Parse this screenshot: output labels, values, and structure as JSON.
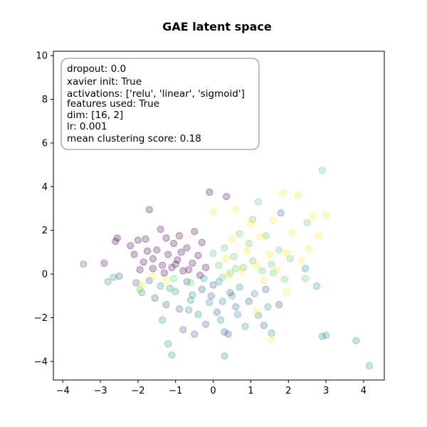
{
  "chart_data": {
    "type": "scatter",
    "title": "GAE latent space",
    "xlabel": "",
    "ylabel": "",
    "xlim": [
      -4.25,
      4.55
    ],
    "ylim": [
      -4.85,
      10.2
    ],
    "xticks": [
      -4,
      -3,
      -2,
      -1,
      0,
      1,
      2,
      3,
      4
    ],
    "yticks": [
      -4,
      -2,
      0,
      2,
      4,
      6,
      8,
      10
    ],
    "grid": false,
    "legend": "none",
    "colormap": "viridis",
    "marker_alpha": 0.25,
    "annotation": {
      "placement": "top-left",
      "lines": [
        "dropout: 0.0",
        "xavier init: True",
        "activations: ['relu', 'linear', 'sigmoid']",
        "features used: True",
        "dim: [16, 2]",
        "lr: 0.001",
        "mean clustering score: 0.18"
      ]
    },
    "cluster_colors": [
      "#440154",
      "#3b528b",
      "#21918c",
      "#5ec962",
      "#fde725"
    ],
    "points": [
      {
        "x": -3.95,
        "y": 9.3,
        "c": 0
      },
      {
        "x": -3.45,
        "y": 0.45,
        "c": 1
      },
      {
        "x": -2.9,
        "y": 0.5,
        "c": 0
      },
      {
        "x": -2.8,
        "y": -0.35,
        "c": 2
      },
      {
        "x": -2.55,
        "y": 1.65,
        "c": 0
      },
      {
        "x": -2.6,
        "y": 1.5,
        "c": 0
      },
      {
        "x": -2.5,
        "y": -0.1,
        "c": 1
      },
      {
        "x": -2.65,
        "y": -0.15,
        "c": 2
      },
      {
        "x": -2.2,
        "y": 1.3,
        "c": 0
      },
      {
        "x": -2.1,
        "y": 0.9,
        "c": 0
      },
      {
        "x": -2.0,
        "y": 1.55,
        "c": 0
      },
      {
        "x": -1.95,
        "y": 0.2,
        "c": 0
      },
      {
        "x": -1.8,
        "y": 1.6,
        "c": 0
      },
      {
        "x": -1.7,
        "y": 2.95,
        "c": 0
      },
      {
        "x": -1.6,
        "y": 0.7,
        "c": 0
      },
      {
        "x": -1.5,
        "y": 1.1,
        "c": 0
      },
      {
        "x": -1.4,
        "y": 2.05,
        "c": 0
      },
      {
        "x": -1.35,
        "y": 0.4,
        "c": 0
      },
      {
        "x": -1.25,
        "y": 1.65,
        "c": 0
      },
      {
        "x": -1.2,
        "y": 0.9,
        "c": 0
      },
      {
        "x": -1.1,
        "y": 0.3,
        "c": 0
      },
      {
        "x": -1.05,
        "y": 1.4,
        "c": 0
      },
      {
        "x": -0.95,
        "y": 0.65,
        "c": 0
      },
      {
        "x": -0.9,
        "y": 1.75,
        "c": 0
      },
      {
        "x": -0.8,
        "y": 0.15,
        "c": 0
      },
      {
        "x": -0.7,
        "y": 1.2,
        "c": 0
      },
      {
        "x": -0.55,
        "y": 0.5,
        "c": 0
      },
      {
        "x": -0.5,
        "y": 1.95,
        "c": 0
      },
      {
        "x": -0.4,
        "y": 0.85,
        "c": 0
      },
      {
        "x": -0.3,
        "y": 1.45,
        "c": 0
      },
      {
        "x": -0.2,
        "y": 0.3,
        "c": 0
      },
      {
        "x": -0.1,
        "y": 3.75,
        "c": 0
      },
      {
        "x": 0.35,
        "y": 3.55,
        "c": 0
      },
      {
        "x": -1.85,
        "y": 0.55,
        "c": 0
      },
      {
        "x": -1.6,
        "y": 0.25,
        "c": 0
      },
      {
        "x": -1.3,
        "y": 0.05,
        "c": 0
      },
      {
        "x": -1.0,
        "y": 0.45,
        "c": 0
      },
      {
        "x": -0.65,
        "y": 0.2,
        "c": 0
      },
      {
        "x": -0.35,
        "y": -0.05,
        "c": 0
      },
      {
        "x": -1.75,
        "y": 1.05,
        "c": 0
      },
      {
        "x": -0.85,
        "y": 1.0,
        "c": 0
      },
      {
        "x": -2.05,
        "y": -0.4,
        "c": 1
      },
      {
        "x": -1.9,
        "y": -0.85,
        "c": 2
      },
      {
        "x": -1.7,
        "y": -0.3,
        "c": 1
      },
      {
        "x": -1.55,
        "y": -1.1,
        "c": 1
      },
      {
        "x": -1.4,
        "y": -0.55,
        "c": 2
      },
      {
        "x": -1.35,
        "y": -2.1,
        "c": 2
      },
      {
        "x": -1.25,
        "y": -1.4,
        "c": 1
      },
      {
        "x": -1.2,
        "y": -3.2,
        "c": 2
      },
      {
        "x": -1.1,
        "y": -3.7,
        "c": 2
      },
      {
        "x": -1.0,
        "y": -0.8,
        "c": 2
      },
      {
        "x": -0.9,
        "y": -1.6,
        "c": 1
      },
      {
        "x": -0.8,
        "y": -2.55,
        "c": 1
      },
      {
        "x": -0.7,
        "y": -0.35,
        "c": 1
      },
      {
        "x": -0.6,
        "y": -1.2,
        "c": 2
      },
      {
        "x": -0.5,
        "y": -2.75,
        "c": 1
      },
      {
        "x": -0.4,
        "y": -1.85,
        "c": 2
      },
      {
        "x": -0.3,
        "y": -0.7,
        "c": 1
      },
      {
        "x": -0.2,
        "y": -2.3,
        "c": 1
      },
      {
        "x": -0.1,
        "y": -1.3,
        "c": 2
      },
      {
        "x": 0.0,
        "y": -0.5,
        "c": 1
      },
      {
        "x": 0.1,
        "y": -1.75,
        "c": 1
      },
      {
        "x": 0.2,
        "y": -2.1,
        "c": 2
      },
      {
        "x": 0.3,
        "y": -2.65,
        "c": 1
      },
      {
        "x": 0.3,
        "y": -3.75,
        "c": 2
      },
      {
        "x": 0.4,
        "y": -2.75,
        "c": 1
      },
      {
        "x": 0.5,
        "y": -1.0,
        "c": 2
      },
      {
        "x": 0.6,
        "y": -1.5,
        "c": 1
      },
      {
        "x": 0.7,
        "y": -0.6,
        "c": 2
      },
      {
        "x": 0.85,
        "y": -2.4,
        "c": 2
      },
      {
        "x": 0.95,
        "y": -1.25,
        "c": 1
      },
      {
        "x": 1.1,
        "y": -0.9,
        "c": 2
      },
      {
        "x": 1.2,
        "y": -1.9,
        "c": 2
      },
      {
        "x": 1.35,
        "y": -2.35,
        "c": 1
      },
      {
        "x": 1.45,
        "y": -1.5,
        "c": 2
      },
      {
        "x": 1.55,
        "y": -2.7,
        "c": 2
      },
      {
        "x": 1.75,
        "y": -1.4,
        "c": 1
      },
      {
        "x": -0.25,
        "y": -0.2,
        "c": 2
      },
      {
        "x": 0.15,
        "y": -0.35,
        "c": 2
      },
      {
        "x": 0.45,
        "y": -0.85,
        "c": 1
      },
      {
        "x": -0.55,
        "y": -0.95,
        "c": 2
      },
      {
        "x": -1.15,
        "y": -0.65,
        "c": 2
      },
      {
        "x": -0.05,
        "y": -1.0,
        "c": 1
      },
      {
        "x": 0.65,
        "y": -1.85,
        "c": 2
      },
      {
        "x": -0.65,
        "y": -1.65,
        "c": 2
      },
      {
        "x": 0.25,
        "y": -1.25,
        "c": 2
      },
      {
        "x": 0.0,
        "y": 0.95,
        "c": 3
      },
      {
        "x": 0.15,
        "y": 0.4,
        "c": 3
      },
      {
        "x": 0.3,
        "y": 1.2,
        "c": 3
      },
      {
        "x": 0.45,
        "y": 0.05,
        "c": 3
      },
      {
        "x": 0.55,
        "y": 0.8,
        "c": 3
      },
      {
        "x": 0.7,
        "y": 1.85,
        "c": 3
      },
      {
        "x": 0.8,
        "y": 0.3,
        "c": 3
      },
      {
        "x": 0.95,
        "y": 1.4,
        "c": 3
      },
      {
        "x": 1.05,
        "y": 0.6,
        "c": 3
      },
      {
        "x": 1.2,
        "y": 3.3,
        "c": 3
      },
      {
        "x": 1.3,
        "y": 0.15,
        "c": 3
      },
      {
        "x": 1.4,
        "y": 1.75,
        "c": 3
      },
      {
        "x": 1.55,
        "y": 0.45,
        "c": 3
      },
      {
        "x": 1.75,
        "y": 1.1,
        "c": 3
      },
      {
        "x": 1.9,
        "y": -0.25,
        "c": 3
      },
      {
        "x": 2.05,
        "y": 0.7,
        "c": 3
      },
      {
        "x": 2.5,
        "y": 2.35,
        "c": 3
      },
      {
        "x": 2.9,
        "y": 4.75,
        "c": 3
      },
      {
        "x": 0.25,
        "y": -0.15,
        "c": 3
      },
      {
        "x": 0.6,
        "y": 0.25,
        "c": 3
      },
      {
        "x": -0.6,
        "y": -0.4,
        "c": 3
      },
      {
        "x": -1.05,
        "y": -0.2,
        "c": 3
      },
      {
        "x": -1.95,
        "y": -0.7,
        "c": 3
      },
      {
        "x": 1.05,
        "y": 2.5,
        "c": 3
      },
      {
        "x": 1.6,
        "y": 0.05,
        "c": 3
      },
      {
        "x": 2.45,
        "y": -0.2,
        "c": 3
      },
      {
        "x": 0.35,
        "y": 0.7,
        "c": 4
      },
      {
        "x": 0.5,
        "y": 1.6,
        "c": 4
      },
      {
        "x": 0.6,
        "y": 2.95,
        "c": 4
      },
      {
        "x": 0.75,
        "y": 0.15,
        "c": 4
      },
      {
        "x": 0.9,
        "y": 1.05,
        "c": 4
      },
      {
        "x": 1.0,
        "y": 2.3,
        "c": 4
      },
      {
        "x": 1.15,
        "y": 0.4,
        "c": 4
      },
      {
        "x": 1.25,
        "y": 1.7,
        "c": 4
      },
      {
        "x": 1.35,
        "y": -0.3,
        "c": 4
      },
      {
        "x": 1.5,
        "y": 0.9,
        "c": 4
      },
      {
        "x": 1.6,
        "y": 2.45,
        "c": 4
      },
      {
        "x": 1.7,
        "y": 0.2,
        "c": 4
      },
      {
        "x": 1.85,
        "y": 3.7,
        "c": 4
      },
      {
        "x": 1.95,
        "y": 0.95,
        "c": 4
      },
      {
        "x": 2.1,
        "y": 1.9,
        "c": 4
      },
      {
        "x": 2.25,
        "y": 3.6,
        "c": 4
      },
      {
        "x": 2.35,
        "y": 0.6,
        "c": 4
      },
      {
        "x": 2.55,
        "y": 1.15,
        "c": 4
      },
      {
        "x": 2.65,
        "y": 2.6,
        "c": 4
      },
      {
        "x": 2.8,
        "y": 1.75,
        "c": 4
      },
      {
        "x": 3.0,
        "y": 2.7,
        "c": 4
      },
      {
        "x": 1.55,
        "y": -3.0,
        "c": 4
      },
      {
        "x": 1.95,
        "y": -0.8,
        "c": 4
      },
      {
        "x": 1.15,
        "y": -1.75,
        "c": 4
      },
      {
        "x": 0.0,
        "y": 2.85,
        "c": 4
      },
      {
        "x": 0.4,
        "y": -0.05,
        "c": 4
      },
      {
        "x": -1.6,
        "y": -0.1,
        "c": 4
      },
      {
        "x": -1.9,
        "y": -0.5,
        "c": 4
      },
      {
        "x": -1.25,
        "y": -0.3,
        "c": 4
      },
      {
        "x": 2.75,
        "y": -0.55,
        "c": 2
      },
      {
        "x": 2.9,
        "y": -2.85,
        "c": 2
      },
      {
        "x": 3.0,
        "y": -2.8,
        "c": 2
      },
      {
        "x": 3.8,
        "y": -3.05,
        "c": 2
      },
      {
        "x": 4.15,
        "y": -4.2,
        "c": 2
      },
      {
        "x": 1.4,
        "y": -0.7,
        "c": 1
      },
      {
        "x": 1.8,
        "y": 2.8,
        "c": 1
      },
      {
        "x": 2.45,
        "y": 0.25,
        "c": 2
      }
    ]
  }
}
